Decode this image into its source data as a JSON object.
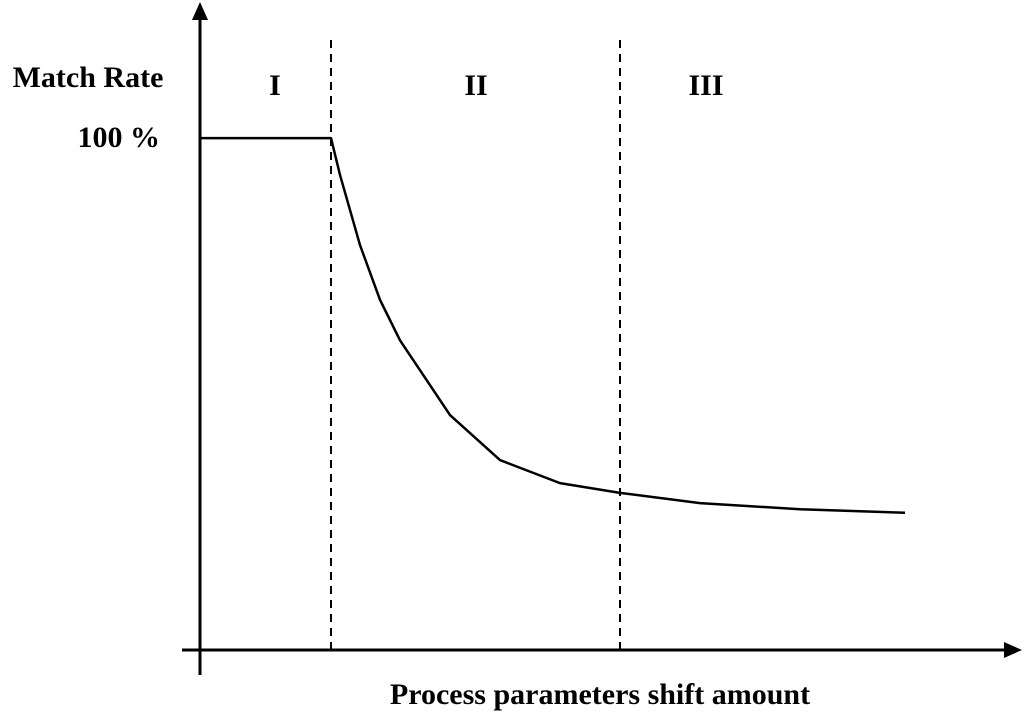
{
  "chart_data": {
    "type": "line",
    "y_label": "Match Rate",
    "x_label": "Process parameters shift amount",
    "xlim": [
      0,
      82
    ],
    "ylim": [
      0,
      126
    ],
    "yticks": [
      {
        "value": 100,
        "label": "100 %"
      }
    ],
    "dividers": [
      13.1,
      42
    ],
    "regions": [
      {
        "text": "I",
        "x": 7.5
      },
      {
        "text": "II",
        "x": 27.6
      },
      {
        "text": "III",
        "x": 50.6
      }
    ],
    "series": [
      {
        "color": "#000000",
        "x": [
          0,
          13.1,
          14,
          16,
          18,
          20,
          25,
          30,
          36,
          42,
          50,
          60,
          70.5
        ],
        "values": [
          100,
          100,
          92.8,
          79.1,
          68.4,
          60.5,
          45.9,
          37.1,
          32.6,
          30.7,
          28.7,
          27.5,
          26.8
        ]
      }
    ]
  }
}
